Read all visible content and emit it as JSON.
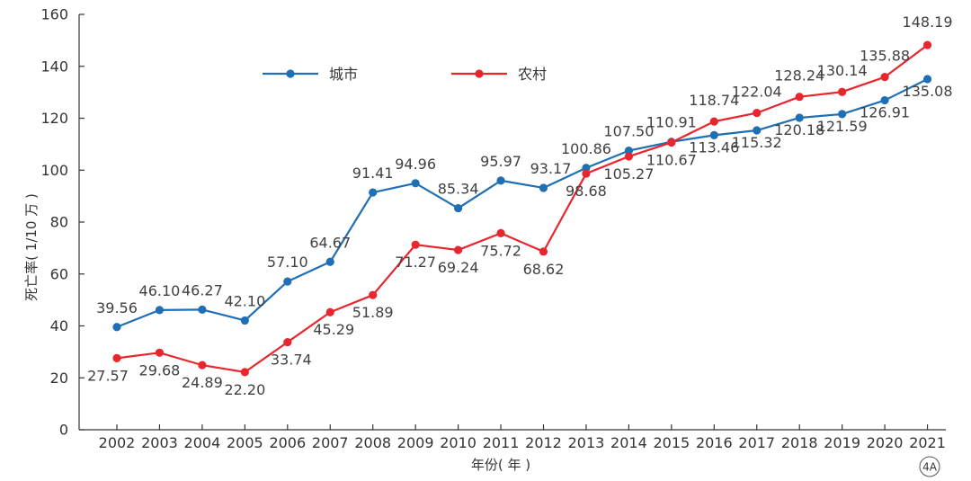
{
  "chart_data": {
    "type": "line",
    "title": "",
    "xlabel": "年份( 年 )",
    "ylabel": "死亡率( 1/10 万 )",
    "x": [
      2002,
      2003,
      2004,
      2005,
      2006,
      2007,
      2008,
      2009,
      2010,
      2011,
      2012,
      2013,
      2014,
      2015,
      2016,
      2017,
      2018,
      2019,
      2020,
      2021
    ],
    "ylim": [
      0,
      160
    ],
    "yticks": [
      0,
      20,
      40,
      60,
      80,
      100,
      120,
      140,
      160
    ],
    "grid": false,
    "legend_position": "top-center",
    "series": [
      {
        "name": "城市",
        "color": "#1f6fb5",
        "values": [
          39.56,
          46.1,
          46.27,
          42.1,
          57.1,
          64.67,
          91.41,
          94.96,
          85.34,
          95.97,
          93.17,
          100.86,
          107.5,
          110.91,
          113.46,
          115.32,
          120.18,
          121.59,
          126.91,
          135.08
        ],
        "labels": [
          "39.56",
          "46.10",
          "46.27",
          "42.10",
          "57.10",
          "64.67",
          "91.41",
          "94.96",
          "85.34",
          "95.97",
          "93.17",
          "100.86",
          "107.50",
          "110.91",
          "113.46",
          "115.32",
          "120.18",
          "121.59",
          "126.91",
          "135.08"
        ]
      },
      {
        "name": "农村",
        "color": "#e8262d",
        "values": [
          27.57,
          29.68,
          24.89,
          22.2,
          33.74,
          45.29,
          51.89,
          71.27,
          69.24,
          75.72,
          68.62,
          98.68,
          105.27,
          110.67,
          118.74,
          122.04,
          128.24,
          130.14,
          135.88,
          148.19
        ],
        "labels": [
          "27.57",
          "29.68",
          "24.89",
          "22.20",
          "33.74",
          "45.29",
          "51.89",
          "71.27",
          "69.24",
          "75.72",
          "68.62",
          "98.68",
          "105.27",
          "110.67",
          "118.74",
          "122.04",
          "128.24",
          "130.14",
          "135.88",
          "148.19"
        ]
      }
    ],
    "panel_label": "4A"
  }
}
